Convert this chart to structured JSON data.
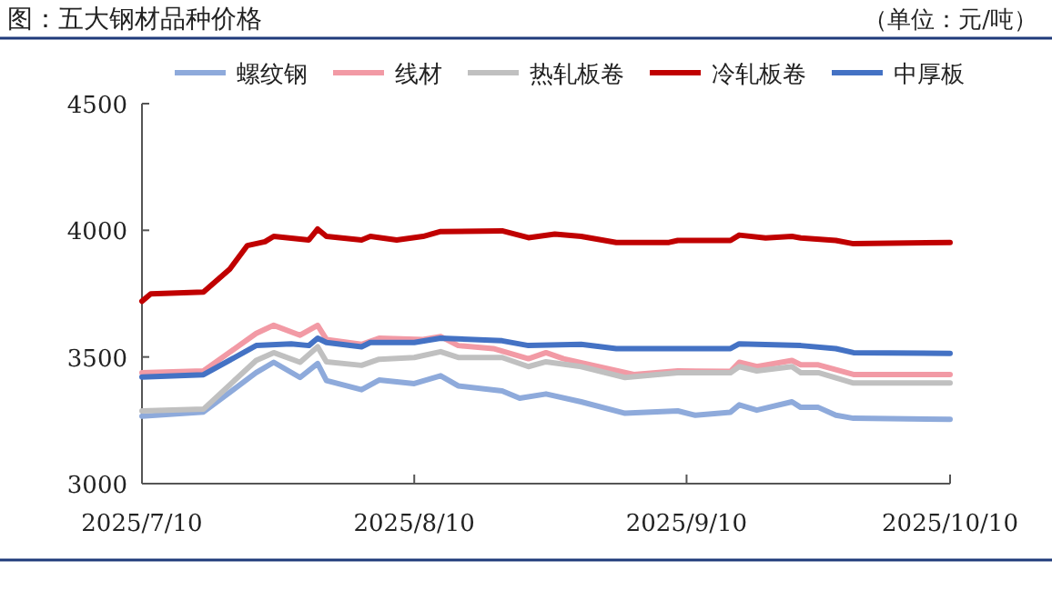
{
  "chart_data": {
    "type": "line",
    "title": "图：五大钢材品种价格",
    "subtitle": "（单位：元/吨）",
    "xlim": [
      "2025-07-10",
      "2025-10-10"
    ],
    "xticks": [
      {
        "value": "2025-07-10",
        "label": "2025/7/10"
      },
      {
        "value": "2025-08-10",
        "label": "2025/8/10"
      },
      {
        "value": "2025-09-10",
        "label": "2025/9/10"
      },
      {
        "value": "2025-10-10",
        "label": "2025/10/10"
      }
    ],
    "ylim": [
      3000,
      4500
    ],
    "yticks": [
      3000,
      3500,
      4000,
      4500
    ],
    "grid": false,
    "legend": "top",
    "marker": "none",
    "line_style": "solid",
    "series": [
      {
        "name": "螺纹钢",
        "color": "#8eaadb",
        "x": [
          "2025-07-10",
          "2025-07-17",
          "2025-07-23",
          "2025-07-25",
          "2025-07-28",
          "2025-07-30",
          "2025-07-31",
          "2025-08-04",
          "2025-08-06",
          "2025-08-10",
          "2025-08-13",
          "2025-08-15",
          "2025-08-20",
          "2025-08-22",
          "2025-08-25",
          "2025-08-29",
          "2025-09-03",
          "2025-09-09",
          "2025-09-11",
          "2025-09-15",
          "2025-09-16",
          "2025-09-18",
          "2025-09-22",
          "2025-09-23",
          "2025-09-25",
          "2025-09-27",
          "2025-09-29",
          "2025-10-10"
        ],
        "values": [
          3266,
          3283,
          3438,
          3479,
          3419,
          3474,
          3407,
          3371,
          3409,
          3395,
          3426,
          3386,
          3366,
          3337,
          3354,
          3323,
          3278,
          3287,
          3270,
          3282,
          3311,
          3290,
          3323,
          3301,
          3301,
          3270,
          3258,
          3254
        ]
      },
      {
        "name": "线材",
        "color": "#f29aa5",
        "x": [
          "2025-07-10",
          "2025-07-17",
          "2025-07-23",
          "2025-07-25",
          "2025-07-28",
          "2025-07-30",
          "2025-07-31",
          "2025-08-04",
          "2025-08-06",
          "2025-08-11",
          "2025-08-13",
          "2025-08-15",
          "2025-08-19",
          "2025-08-23",
          "2025-08-25",
          "2025-08-27",
          "2025-09-04",
          "2025-09-09",
          "2025-09-15",
          "2025-09-16",
          "2025-09-18",
          "2025-09-22",
          "2025-09-23",
          "2025-09-25",
          "2025-09-29",
          "2025-10-10"
        ],
        "values": [
          3438,
          3445,
          3593,
          3625,
          3586,
          3625,
          3569,
          3550,
          3574,
          3569,
          3581,
          3545,
          3533,
          3493,
          3517,
          3493,
          3431,
          3445,
          3443,
          3479,
          3462,
          3486,
          3469,
          3469,
          3431,
          3431
        ]
      },
      {
        "name": "热轧板卷",
        "color": "#c0c0c0",
        "x": [
          "2025-07-10",
          "2025-07-17",
          "2025-07-23",
          "2025-07-25",
          "2025-07-28",
          "2025-07-30",
          "2025-07-31",
          "2025-08-04",
          "2025-08-06",
          "2025-08-10",
          "2025-08-13",
          "2025-08-15",
          "2025-08-20",
          "2025-08-23",
          "2025-08-25",
          "2025-08-29",
          "2025-09-03",
          "2025-09-09",
          "2025-09-15",
          "2025-09-16",
          "2025-09-18",
          "2025-09-22",
          "2025-09-23",
          "2025-09-25",
          "2025-09-29",
          "2025-10-10"
        ],
        "values": [
          3287,
          3294,
          3486,
          3517,
          3479,
          3540,
          3481,
          3467,
          3491,
          3498,
          3521,
          3498,
          3498,
          3462,
          3481,
          3462,
          3419,
          3438,
          3438,
          3462,
          3445,
          3462,
          3438,
          3438,
          3397,
          3397
        ]
      },
      {
        "name": "冷轧板卷",
        "color": "#c00000",
        "x": [
          "2025-07-10",
          "2025-07-11",
          "2025-07-17",
          "2025-07-20",
          "2025-07-22",
          "2025-07-24",
          "2025-07-25",
          "2025-07-29",
          "2025-07-30",
          "2025-07-31",
          "2025-08-04",
          "2025-08-05",
          "2025-08-08",
          "2025-08-11",
          "2025-08-13",
          "2025-08-20",
          "2025-08-23",
          "2025-08-26",
          "2025-08-29",
          "2025-09-02",
          "2025-09-08",
          "2025-09-09",
          "2025-09-15",
          "2025-09-16",
          "2025-09-19",
          "2025-09-22",
          "2025-09-23",
          "2025-09-27",
          "2025-09-29",
          "2025-10-10"
        ],
        "values": [
          3720,
          3749,
          3756,
          3847,
          3940,
          3955,
          3976,
          3962,
          4005,
          3976,
          3962,
          3976,
          3962,
          3976,
          3995,
          3998,
          3971,
          3985,
          3976,
          3952,
          3952,
          3960,
          3960,
          3981,
          3970,
          3976,
          3970,
          3960,
          3947,
          3952
        ]
      },
      {
        "name": "中厚板",
        "color": "#4472c4",
        "x": [
          "2025-07-10",
          "2025-07-17",
          "2025-07-23",
          "2025-07-27",
          "2025-07-29",
          "2025-07-30",
          "2025-07-31",
          "2025-08-04",
          "2025-08-05",
          "2025-08-10",
          "2025-08-13",
          "2025-08-20",
          "2025-08-23",
          "2025-08-29",
          "2025-09-02",
          "2025-09-15",
          "2025-09-16",
          "2025-09-23",
          "2025-09-27",
          "2025-09-29",
          "2025-10-10"
        ],
        "values": [
          3421,
          3430,
          3545,
          3552,
          3545,
          3574,
          3557,
          3540,
          3557,
          3557,
          3574,
          3564,
          3545,
          3550,
          3533,
          3533,
          3552,
          3545,
          3533,
          3517,
          3514
        ]
      }
    ]
  }
}
